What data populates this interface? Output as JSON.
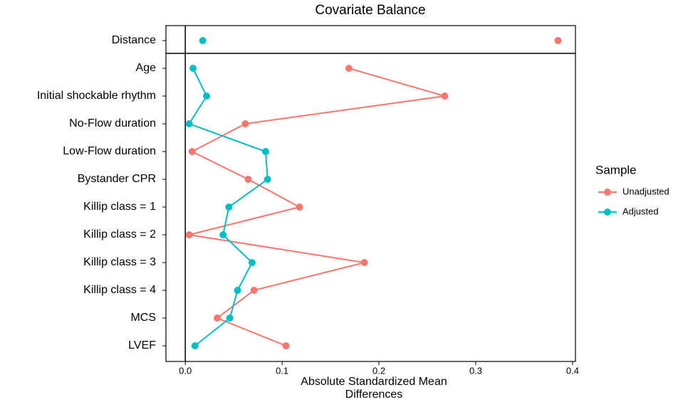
{
  "chart_data": {
    "type": "dotline",
    "title": "Covariate Balance",
    "xlabel": "Absolute Standardized Mean Differences",
    "categories": [
      "Distance",
      "Age",
      "Initial shockable rhythm",
      "No-Flow duration",
      "Low-Flow duration",
      "Bystander CPR",
      "Killip class = 1",
      "Killip class = 2",
      "Killip class = 3",
      "Killip class = 4",
      "MCS",
      "LVEF"
    ],
    "series": [
      {
        "name": "Unadjusted",
        "color": "#F8766D",
        "values": [
          0.385,
          0.169,
          0.268,
          0.062,
          0.007,
          0.065,
          0.118,
          0.004,
          0.185,
          0.071,
          0.033,
          0.104
        ]
      },
      {
        "name": "Adjusted",
        "color": "#00BFC4",
        "values": [
          0.018,
          0.008,
          0.022,
          0.004,
          0.083,
          0.085,
          0.045,
          0.039,
          0.069,
          0.054,
          0.046,
          0.01
        ]
      }
    ],
    "xlim": [
      -0.02,
      0.403
    ],
    "xticks": [
      {
        "value": 0,
        "label": "0.0"
      },
      0.1,
      0.2,
      0.3,
      0.4
    ],
    "legend_title": "Sample",
    "legend": "right"
  }
}
